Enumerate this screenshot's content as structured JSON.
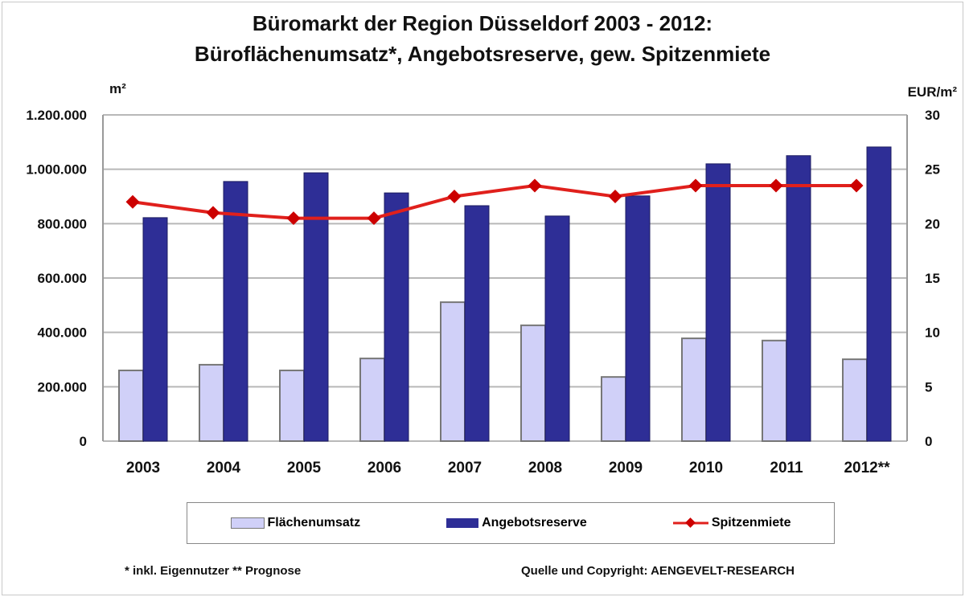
{
  "chart_data": {
    "type": "bar",
    "title": "Büromarkt der Region Düsseldorf 2003 - 2012:",
    "subtitle": "Büroflächenumsatz*, Angebotsreserve, gew. Spitzenmiete",
    "ylabel": "m²",
    "y2label": "EUR/m²",
    "ylim": [
      0,
      1200000
    ],
    "y2lim": [
      0,
      30
    ],
    "yticks": [
      "0",
      "200.000",
      "400.000",
      "600.000",
      "800.000",
      "1.000.000",
      "1.200.000"
    ],
    "y2ticks": [
      "0",
      "5",
      "10",
      "15",
      "20",
      "25",
      "30"
    ],
    "categories": [
      "2003",
      "2004",
      "2005",
      "2006",
      "2007",
      "2008",
      "2009",
      "2010",
      "2011",
      "2012**"
    ],
    "series": [
      {
        "name": "Flächenumsatz",
        "type": "bar",
        "axis": "left",
        "color": "#d0d0f8",
        "values": [
          260000,
          281000,
          260000,
          304000,
          511000,
          426000,
          236000,
          378000,
          370000,
          301000
        ]
      },
      {
        "name": "Angebotsreserve",
        "type": "bar",
        "axis": "left",
        "color": "#2e2e96",
        "values": [
          822000,
          955000,
          987000,
          913000,
          866000,
          828000,
          902000,
          1020000,
          1050000,
          1082000
        ]
      },
      {
        "name": "Spitzenmiete",
        "type": "line",
        "axis": "right",
        "color": "#e0201c",
        "values": [
          22,
          21,
          20.5,
          20.5,
          22.5,
          23.5,
          22.5,
          23.5,
          23.5,
          23.5
        ]
      }
    ],
    "grid": true,
    "legend": "bottom"
  },
  "footnote_left": "* inkl. Eigennutzer  ** Prognose",
  "footnote_right": "Quelle und Copyright: AENGEVELT-RESEARCH"
}
